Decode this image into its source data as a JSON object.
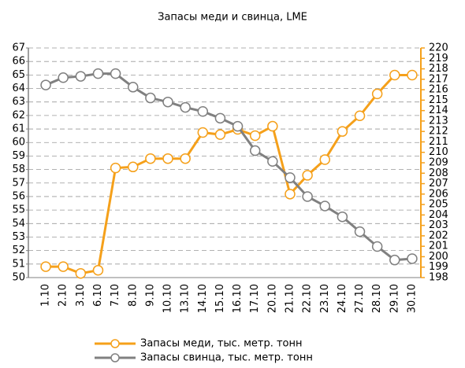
{
  "chart_data": {
    "type": "line",
    "title": "Запасы меди и свинца, LME",
    "categories": [
      "1.10",
      "2.10",
      "3.10",
      "6.10",
      "7.10",
      "8.10",
      "9.10",
      "10.10",
      "13.10",
      "14.10",
      "15.10",
      "16.10",
      "17.10",
      "20.10",
      "21.10",
      "22.10",
      "23.10",
      "24.10",
      "27.10",
      "28.10",
      "29.10",
      "30.10"
    ],
    "series": [
      {
        "name": "Запасы меди, тыс. метр. тонн",
        "color": "#f5a01a",
        "axis": "y2",
        "values": [
          199.05,
          199.05,
          198.4,
          198.7,
          208.5,
          208.6,
          209.4,
          209.4,
          209.4,
          211.9,
          211.7,
          212.2,
          211.6,
          212.5,
          206.0,
          207.8,
          209.3,
          212.0,
          213.5,
          215.6,
          217.4,
          217.4
        ]
      },
      {
        "name": "Запасы свинца, тыс. метр. тонн",
        "color": "#808080",
        "values": [
          64.26,
          64.8,
          64.9,
          65.1,
          65.1,
          64.1,
          63.3,
          63.0,
          62.6,
          62.3,
          61.8,
          61.2,
          59.4,
          58.6,
          57.4,
          56.0,
          55.3,
          54.5,
          53.4,
          52.3,
          51.3,
          51.4
        ]
      }
    ],
    "ylim": [
      50,
      67
    ],
    "yticks": [
      50,
      51,
      52,
      53,
      54,
      55,
      56,
      57,
      58,
      59,
      60,
      61,
      62,
      63,
      64,
      65,
      66,
      67
    ],
    "y2lim": [
      198,
      220
    ],
    "y2ticks": [
      198,
      199,
      200,
      201,
      202,
      203,
      204,
      205,
      206,
      207,
      208,
      209,
      210,
      211,
      212,
      213,
      214,
      215,
      216,
      217,
      218,
      219,
      220
    ],
    "grid": true,
    "legend": "bottom"
  }
}
